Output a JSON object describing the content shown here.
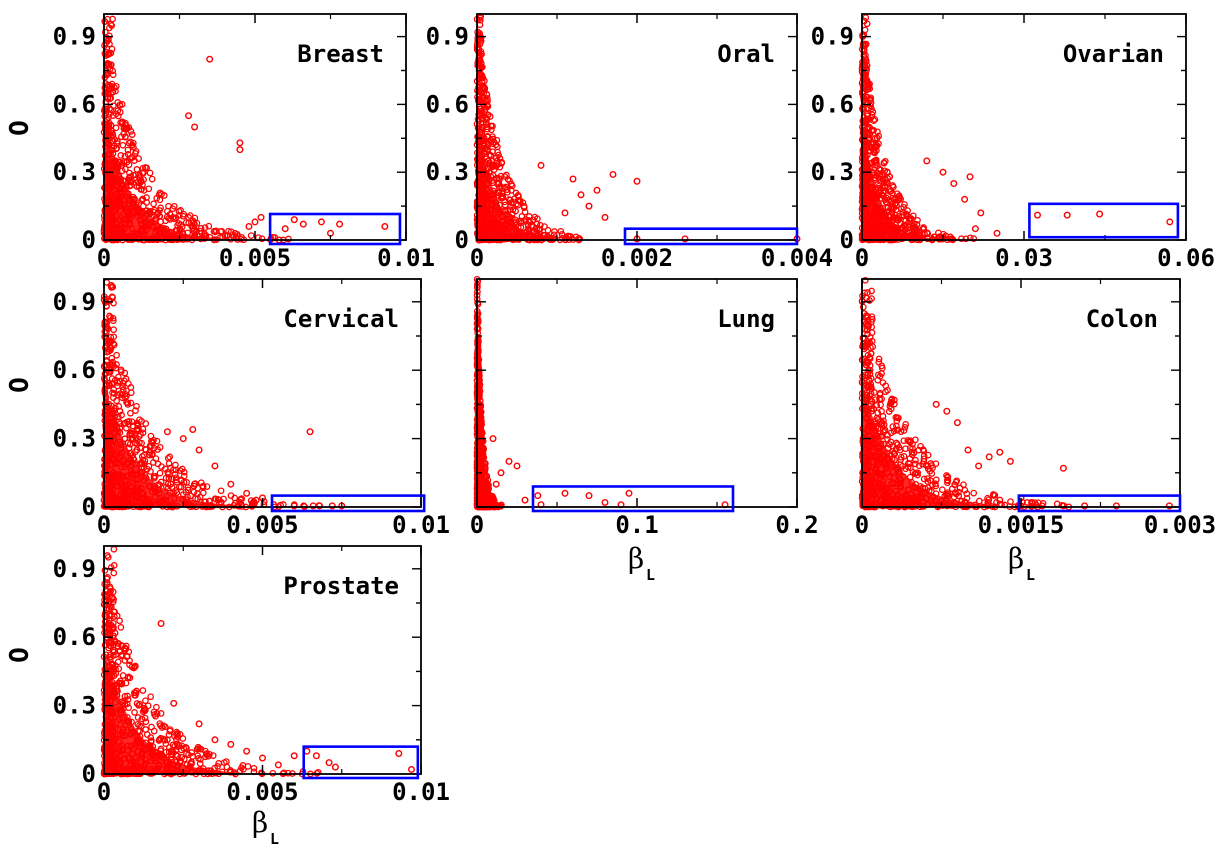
{
  "figure": {
    "y_axis_label": "O",
    "x_axis_label": "β",
    "x_axis_label_subscript": "L"
  },
  "colors": {
    "points": "#ff0000",
    "box": "#0000ff",
    "axes": "#000000"
  },
  "chart_data": [
    {
      "type": "scatter",
      "title": "Breast",
      "xlim": [
        0,
        0.01
      ],
      "ylim": [
        0,
        1
      ],
      "x_ticks": [
        "0",
        "0.005",
        "0.01"
      ],
      "y_ticks": [
        "0",
        "0.3",
        "0.6",
        "0.9"
      ],
      "x_decay": 0.0012,
      "outliers": [
        [
          0.0045,
          0.4
        ],
        [
          0.0045,
          0.43
        ],
        [
          0.003,
          0.5
        ],
        [
          0.0028,
          0.55
        ],
        [
          0.0035,
          0.8
        ],
        [
          0.005,
          0.08
        ],
        [
          0.006,
          0.05
        ],
        [
          0.0052,
          0.1
        ],
        [
          0.0048,
          0.06
        ]
      ],
      "highlighted": [
        [
          0.0058,
          0.0
        ],
        [
          0.0063,
          0.09
        ],
        [
          0.0066,
          0.07
        ],
        [
          0.0072,
          0.08
        ],
        [
          0.0075,
          0.03
        ],
        [
          0.0078,
          0.07
        ],
        [
          0.0093,
          0.06
        ]
      ],
      "box": [
        0.0055,
        0.0,
        0.0098,
        0.115
      ]
    },
    {
      "type": "scatter",
      "title": "Oral",
      "xlim": [
        0,
        0.004
      ],
      "ylim": [
        0,
        1
      ],
      "x_ticks": [
        "0",
        "0.002",
        "0.004"
      ],
      "y_ticks": [
        "0",
        "0.3",
        "0.6",
        "0.9"
      ],
      "x_decay": 0.0003,
      "outliers": [
        [
          0.0012,
          0.27
        ],
        [
          0.0015,
          0.22
        ],
        [
          0.0017,
          0.29
        ],
        [
          0.002,
          0.26
        ],
        [
          0.0013,
          0.2
        ],
        [
          0.0008,
          0.33
        ],
        [
          0.0011,
          0.12
        ],
        [
          0.0014,
          0.15
        ],
        [
          0.0016,
          0.1
        ]
      ],
      "highlighted": [
        [
          0.002,
          0.005
        ],
        [
          0.0026,
          0.005
        ],
        [
          0.004,
          0.005
        ]
      ],
      "box": [
        0.00185,
        0.0,
        0.004,
        0.05
      ]
    },
    {
      "type": "scatter",
      "title": "Ovarian",
      "xlim": [
        0,
        0.06
      ],
      "ylim": [
        0,
        1
      ],
      "x_ticks": [
        "0",
        "0.03",
        "0.06"
      ],
      "y_ticks": [
        "0",
        "0.3",
        "0.6",
        "0.9"
      ],
      "x_decay": 0.004,
      "outliers": [
        [
          0.02,
          0.28
        ],
        [
          0.017,
          0.25
        ],
        [
          0.022,
          0.12
        ],
        [
          0.015,
          0.3
        ],
        [
          0.012,
          0.35
        ],
        [
          0.019,
          0.18
        ],
        [
          0.025,
          0.03
        ],
        [
          0.021,
          0.05
        ]
      ],
      "highlighted": [
        [
          0.0325,
          0.11
        ],
        [
          0.038,
          0.11
        ],
        [
          0.044,
          0.115
        ],
        [
          0.057,
          0.08
        ]
      ],
      "box": [
        0.031,
        0.03,
        0.0585,
        0.16
      ]
    },
    {
      "type": "scatter",
      "title": "Cervical",
      "xlim": [
        0,
        0.01
      ],
      "ylim": [
        0,
        1
      ],
      "x_ticks": [
        "0",
        "0.005",
        "0.01"
      ],
      "y_ticks": [
        "0",
        "0.3",
        "0.6",
        "0.9"
      ],
      "x_decay": 0.0013,
      "outliers": [
        [
          0.0025,
          0.3
        ],
        [
          0.003,
          0.25
        ],
        [
          0.0035,
          0.18
        ],
        [
          0.0028,
          0.34
        ],
        [
          0.004,
          0.1
        ],
        [
          0.0045,
          0.06
        ],
        [
          0.005,
          0.04
        ],
        [
          0.0065,
          0.33
        ],
        [
          0.002,
          0.33
        ],
        [
          0.0048,
          0.03
        ]
      ],
      "highlighted": [
        [
          0.006,
          0.005
        ],
        [
          0.0063,
          0.005
        ],
        [
          0.0066,
          0.005
        ],
        [
          0.0068,
          0.005
        ],
        [
          0.0072,
          0.005
        ],
        [
          0.0075,
          0.005
        ]
      ],
      "box": [
        0.0053,
        0.0,
        0.0101,
        0.05
      ]
    },
    {
      "type": "scatter",
      "title": "Lung",
      "xlim": [
        0,
        0.2
      ],
      "ylim": [
        0,
        1
      ],
      "x_ticks": [
        "0",
        "0.1",
        "0.2"
      ],
      "y_ticks": [],
      "x_decay": 0.003,
      "outliers": [
        [
          0.02,
          0.2
        ],
        [
          0.025,
          0.18
        ],
        [
          0.015,
          0.15
        ],
        [
          0.03,
          0.03
        ],
        [
          0.01,
          0.3
        ],
        [
          0.012,
          0.1
        ]
      ],
      "highlighted": [
        [
          0.038,
          0.05
        ],
        [
          0.04,
          0.01
        ],
        [
          0.055,
          0.06
        ],
        [
          0.07,
          0.05
        ],
        [
          0.08,
          0.02
        ],
        [
          0.09,
          0.01
        ],
        [
          0.095,
          0.06
        ],
        [
          0.155,
          0.01
        ]
      ],
      "box": [
        0.035,
        0.0,
        0.16,
        0.09
      ]
    },
    {
      "type": "scatter",
      "title": "Colon",
      "xlim": [
        0,
        0.003
      ],
      "ylim": [
        0,
        1
      ],
      "x_ticks": [
        "0",
        "0.0015",
        "0.003"
      ],
      "y_ticks": [],
      "x_decay": 0.0004,
      "outliers": [
        [
          0.0008,
          0.42
        ],
        [
          0.0009,
          0.37
        ],
        [
          0.0007,
          0.45
        ],
        [
          0.001,
          0.25
        ],
        [
          0.0011,
          0.18
        ],
        [
          0.0012,
          0.22
        ],
        [
          0.0013,
          0.24
        ],
        [
          0.0014,
          0.2
        ],
        [
          0.0019,
          0.17
        ],
        [
          0.0013,
          0.03
        ],
        [
          0.0015,
          0.04
        ],
        [
          0.0016,
          0.02
        ]
      ],
      "highlighted": [
        [
          0.0015,
          0.005
        ],
        [
          0.0017,
          0.005
        ],
        [
          0.0019,
          0.005
        ],
        [
          0.0021,
          0.005
        ],
        [
          0.0024,
          0.005
        ],
        [
          0.0029,
          0.005
        ]
      ],
      "box": [
        0.00148,
        0.0,
        0.003,
        0.05
      ]
    },
    {
      "type": "scatter",
      "title": "Prostate",
      "xlim": [
        0,
        0.01
      ],
      "ylim": [
        0,
        1
      ],
      "x_ticks": [
        "0",
        "0.005",
        "0.01"
      ],
      "y_ticks": [
        "0",
        "0.3",
        "0.6",
        "0.9"
      ],
      "x_decay": 0.0013,
      "outliers": [
        [
          0.0018,
          0.66
        ],
        [
          0.0022,
          0.31
        ],
        [
          0.003,
          0.22
        ],
        [
          0.0035,
          0.15
        ],
        [
          0.004,
          0.13
        ],
        [
          0.0045,
          0.1
        ],
        [
          0.005,
          0.07
        ],
        [
          0.0055,
          0.04
        ],
        [
          0.006,
          0.08
        ]
      ],
      "highlighted": [
        [
          0.0064,
          0.1
        ],
        [
          0.0067,
          0.08
        ],
        [
          0.0071,
          0.05
        ],
        [
          0.0073,
          0.03
        ],
        [
          0.0093,
          0.09
        ],
        [
          0.0097,
          0.02
        ]
      ],
      "box": [
        0.0063,
        0.0,
        0.0099,
        0.12
      ]
    }
  ]
}
